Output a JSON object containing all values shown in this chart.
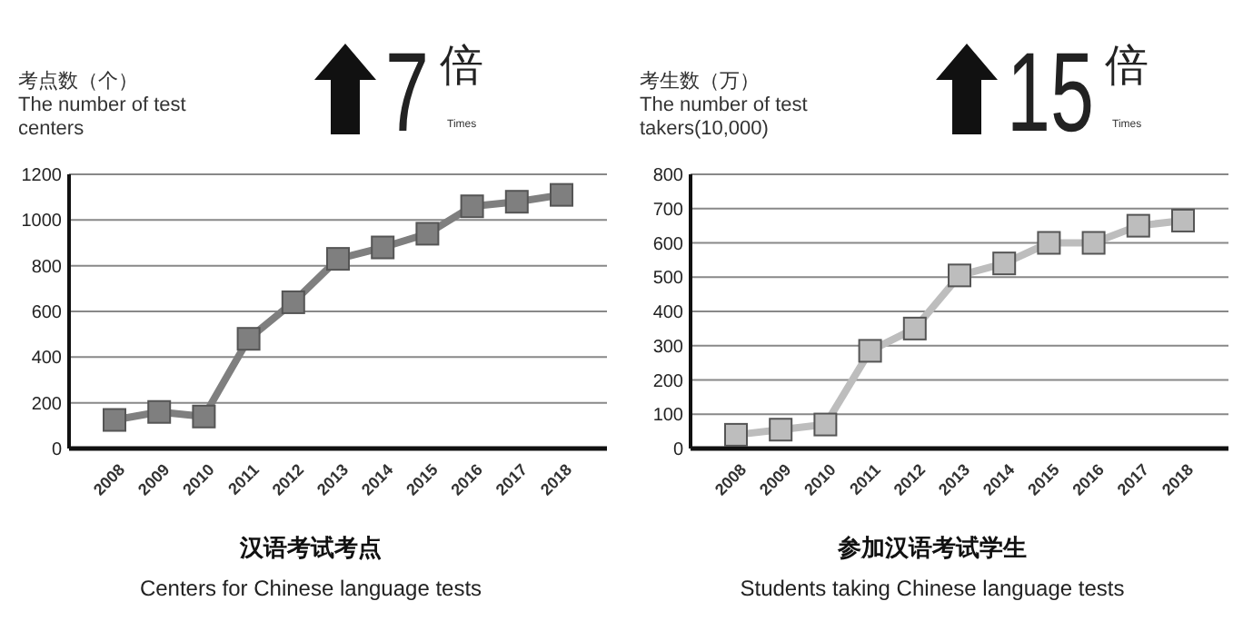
{
  "chart_data": [
    {
      "type": "line",
      "title": "汉语考试考点",
      "subtitle": "Centers for Chinese language tests",
      "ylabel": "考点数（个）\nThe number of test\ncenters",
      "annotations": [
        "7",
        "倍",
        "Times"
      ],
      "categories": [
        "2008",
        "2009",
        "2010",
        "2011",
        "2012",
        "2013",
        "2014",
        "2015",
        "2016",
        "2017",
        "2018"
      ],
      "series": [
        {
          "color": "#7f7f7f",
          "values": [
            125,
            160,
            140,
            480,
            640,
            830,
            880,
            940,
            1060,
            1080,
            1110
          ]
        }
      ],
      "ylim": [
        0,
        1200
      ],
      "yticks": [
        0,
        200,
        400,
        600,
        800,
        1000,
        1200
      ],
      "grid": "y",
      "marker": "square",
      "line_style": "solid"
    },
    {
      "type": "line",
      "title": "参加汉语考试学生",
      "subtitle": "Students taking Chinese language tests",
      "ylabel": "考生数（万）\nThe number of test\ntakers(10,000)",
      "annotations": [
        "15",
        "倍",
        "Times"
      ],
      "categories": [
        "2008",
        "2009",
        "2010",
        "2011",
        "2012",
        "2013",
        "2014",
        "2015",
        "2016",
        "2017",
        "2018"
      ],
      "series": [
        {
          "color": "#bdbdbd",
          "values": [
            40,
            55,
            70,
            285,
            350,
            505,
            540,
            600,
            600,
            650,
            665
          ]
        }
      ],
      "ylim": [
        0,
        800
      ],
      "yticks": [
        0,
        100,
        200,
        300,
        400,
        500,
        600,
        700,
        800
      ],
      "grid": "y",
      "marker": "square",
      "line_style": "solid"
    }
  ]
}
